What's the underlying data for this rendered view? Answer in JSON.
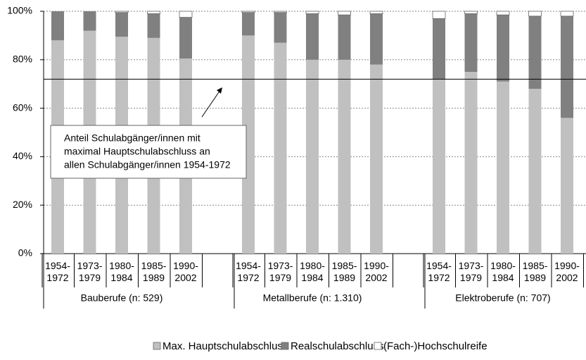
{
  "chart_data": {
    "type": "stacked-bar",
    "groups": [
      {
        "name": "Bauberufe (n: 529)",
        "categories": [
          "1954-1972",
          "1973-1979",
          "1980-1984",
          "1985-1989",
          "1990-2002"
        ]
      },
      {
        "name": "Metallberufe (n: 1.310)",
        "categories": [
          "1954-1972",
          "1973-1979",
          "1980-1984",
          "1985-1989",
          "1990-2002"
        ]
      },
      {
        "name": "Elektroberufe (n: 707)",
        "categories": [
          "1954-1972",
          "1973-1979",
          "1980-1984",
          "1985-1989",
          "1990-2002"
        ]
      }
    ],
    "series": [
      {
        "name": "Max. Hauptschulabschluss",
        "color": "#c0c0c0",
        "values": [
          88,
          92,
          89.5,
          89,
          80.5,
          90,
          87,
          80,
          80,
          78,
          72,
          75,
          71,
          68,
          56
        ]
      },
      {
        "name": "Realschulabschluss",
        "color": "#808080",
        "values": [
          12,
          8,
          10,
          10,
          17,
          9.5,
          12.5,
          19,
          18.5,
          21,
          25,
          24,
          27.5,
          30,
          42
        ]
      },
      {
        "name": "(Fach-)Hochschulreife",
        "color": "#ffffff",
        "values": [
          0,
          0,
          0.5,
          1,
          2.5,
          0.5,
          0.5,
          1,
          1.5,
          1,
          3,
          1,
          1.5,
          2,
          2
        ]
      }
    ],
    "ylim": [
      0,
      100
    ],
    "yticks": [
      {
        "value": 0,
        "label": "0%"
      },
      {
        "value": 20,
        "label": "20%"
      },
      {
        "value": 40,
        "label": "40%"
      },
      {
        "value": 60,
        "label": "60%"
      },
      {
        "value": 80,
        "label": "80%"
      },
      {
        "value": 100,
        "label": "100%"
      }
    ],
    "grid": true,
    "reference_line": 72,
    "annotation": {
      "lines": [
        "Anteil Schulabgänger/innen mit",
        "maximal Hauptschulabschluss an",
        "allen Schulabgänger/innen 1954-1972"
      ]
    },
    "legend": "bottom"
  }
}
